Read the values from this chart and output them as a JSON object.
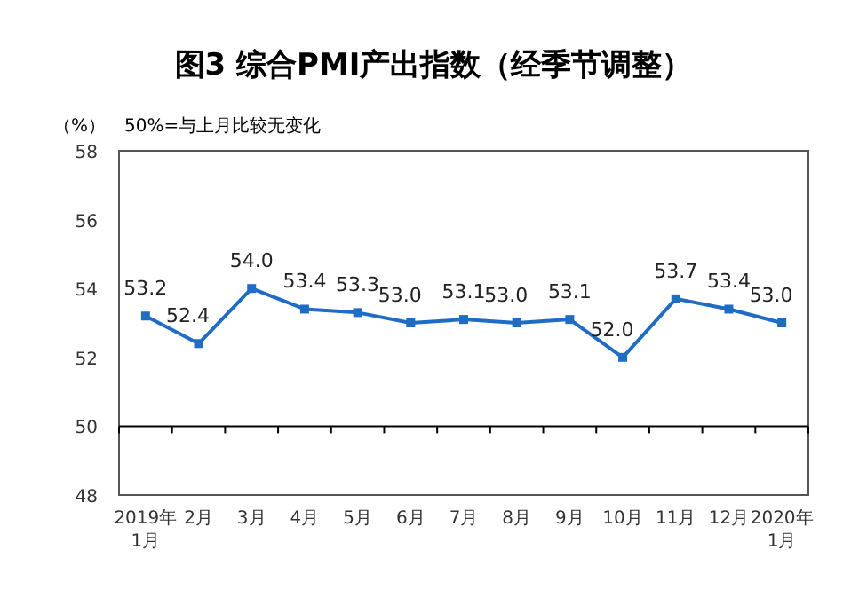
{
  "chart_data": {
    "type": "line",
    "title": "图3 综合PMI产出指数（经季节调整）",
    "ylabel": "（%）",
    "annotations": [
      "50%=与上月比较无变化"
    ],
    "categories": [
      "2019年\n1月",
      "2月",
      "3月",
      "4月",
      "5月",
      "6月",
      "7月",
      "8月",
      "9月",
      "10月",
      "11月",
      "12月",
      "2020年\n1月"
    ],
    "series": [
      {
        "color": "#1f6cc4",
        "values": [
          53.2,
          52.4,
          54.0,
          53.4,
          53.3,
          53.0,
          53.1,
          53.0,
          53.1,
          52.0,
          53.7,
          53.4,
          53.0
        ],
        "value_labels": [
          "53.2",
          "52.4",
          "54.0",
          "53.4",
          "53.3",
          "53.0",
          "53.1",
          "53.0",
          "53.1",
          "52.0",
          "53.7",
          "53.4",
          "53.0"
        ]
      }
    ],
    "ylim": [
      48,
      58
    ],
    "yticks": [
      48,
      50,
      52,
      54,
      56,
      58
    ],
    "ref_lines": [
      {
        "axis": "y",
        "value": 50,
        "color": "#000000"
      }
    ],
    "marker": "square",
    "line_style": "solid",
    "grid": false
  }
}
